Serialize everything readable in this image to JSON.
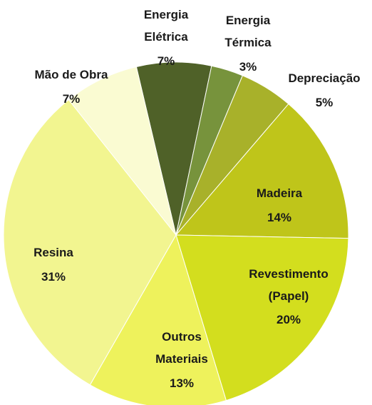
{
  "chart_data": {
    "type": "pie",
    "categories": [
      "Energia\nElétrica",
      "Energia\nTérmica",
      "Depreciação",
      "Madeira",
      "Revestimento\n(Papel)",
      "Outros\nMateriais",
      "Resina",
      "Mão de Obra"
    ],
    "values": [
      7,
      3,
      5,
      14,
      20,
      13,
      31,
      7
    ],
    "value_labels": [
      "7%",
      "3%",
      "5%",
      "14%",
      "20%",
      "13%",
      "31%",
      "7%"
    ],
    "colors": [
      "#4f6128",
      "#77933c",
      "#a8b12a",
      "#bfc51a",
      "#d3de1e",
      "#eef25c",
      "#f2f590",
      "#fafbd2"
    ]
  }
}
